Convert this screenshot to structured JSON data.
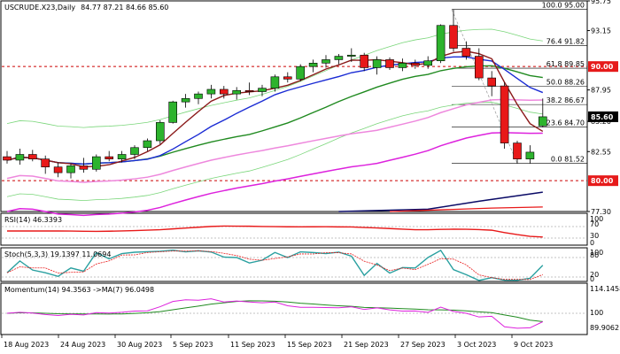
{
  "header": {
    "symbol_label": "USCRUDE.X23,Daily",
    "ohlc": "84.77 87.21 84.66 85.60"
  },
  "panels": {
    "rsi_label": "RSI(14) 46.3393",
    "stoch_label": "Stoch(5,3,3) 19.1397 11.0694",
    "momentum_label": "Momentum(14) 94.3563  ->MA(7) 96.0498"
  },
  "colors": {
    "bull": "#2db32d",
    "bear": "#e81919",
    "fast_ma": "#1a2bd4",
    "ma_red": "#8b1a1a",
    "ma_green": "#208a20",
    "ma_pink": "#ee88dd",
    "ma_magenta": "#dd22dd",
    "ma_navy": "#0a0a66",
    "bollinger": "#7ad67a",
    "ref_line": "#cc0000",
    "price_badge_bg": "#000000",
    "ref_badge_bg": "#e61a1a"
  },
  "fibonacci": {
    "levels": [
      {
        "label": "100.0 95.00",
        "price": 95.0
      },
      {
        "label": "76.4 91.82",
        "price": 91.82
      },
      {
        "label": "61.8 89.85",
        "price": 89.85
      },
      {
        "label": "50.0 88.26",
        "price": 88.26
      },
      {
        "label": "38.2 86.67",
        "price": 86.67
      },
      {
        "label": "23.6 84.70",
        "price": 84.7
      },
      {
        "label": "0.0 81.52",
        "price": 81.52
      }
    ]
  },
  "reference_lines": {
    "upper": {
      "price": 90.0,
      "label": "90.00"
    },
    "lower": {
      "price": 80.0,
      "label": "80.00"
    }
  },
  "current_price": {
    "value": 85.6,
    "label": "85.60"
  },
  "price_axis": {
    "ticks": [
      {
        "value": 95.75,
        "label": "95.75"
      },
      {
        "value": 93.15,
        "label": "93.15"
      },
      {
        "value": 87.95,
        "label": "87.95"
      },
      {
        "value": 85.2,
        "label": "85.20"
      },
      {
        "value": 82.55,
        "label": "82.55"
      },
      {
        "value": 77.3,
        "label": "77.30"
      }
    ]
  },
  "rsi_axis": [
    "100",
    "70",
    "30",
    "0"
  ],
  "stoch_axis": [
    "100",
    "80",
    "20",
    "0"
  ],
  "momentum_axis": [
    "114.1458",
    "100",
    "89.9062"
  ],
  "chart_data": {
    "type": "candlestick",
    "symbol": "USCRUDE.X23",
    "timeframe": "Daily",
    "ylim": [
      77.3,
      95.75
    ],
    "x_labels": [
      "18 Aug 2023",
      "24 Aug 2023",
      "30 Aug 2023",
      "5 Sep 2023",
      "11 Sep 2023",
      "15 Sep 2023",
      "21 Sep 2023",
      "27 Sep 2023",
      "3 Oct 2023",
      "9 Oct 2023"
    ],
    "candles": [
      {
        "o": 82.1,
        "h": 82.6,
        "l": 81.5,
        "c": 81.8
      },
      {
        "o": 81.8,
        "h": 82.8,
        "l": 81.4,
        "c": 82.3
      },
      {
        "o": 82.3,
        "h": 82.7,
        "l": 81.7,
        "c": 81.9
      },
      {
        "o": 81.9,
        "h": 82.2,
        "l": 80.6,
        "c": 81.2
      },
      {
        "o": 81.2,
        "h": 81.6,
        "l": 80.3,
        "c": 80.7
      },
      {
        "o": 80.7,
        "h": 81.5,
        "l": 80.2,
        "c": 81.3
      },
      {
        "o": 81.3,
        "h": 82.0,
        "l": 80.7,
        "c": 81.0
      },
      {
        "o": 81.0,
        "h": 82.3,
        "l": 80.8,
        "c": 82.1
      },
      {
        "o": 82.1,
        "h": 82.6,
        "l": 81.7,
        "c": 81.9
      },
      {
        "o": 81.9,
        "h": 82.6,
        "l": 81.6,
        "c": 82.3
      },
      {
        "o": 82.3,
        "h": 83.1,
        "l": 81.9,
        "c": 82.9
      },
      {
        "o": 82.9,
        "h": 83.7,
        "l": 82.6,
        "c": 83.5
      },
      {
        "o": 83.5,
        "h": 85.3,
        "l": 83.2,
        "c": 85.1
      },
      {
        "o": 85.1,
        "h": 87.0,
        "l": 85.0,
        "c": 86.9
      },
      {
        "o": 86.9,
        "h": 87.6,
        "l": 86.4,
        "c": 87.2
      },
      {
        "o": 87.2,
        "h": 87.8,
        "l": 86.7,
        "c": 87.6
      },
      {
        "o": 87.6,
        "h": 88.4,
        "l": 87.2,
        "c": 88.0
      },
      {
        "o": 88.0,
        "h": 88.3,
        "l": 87.2,
        "c": 87.6
      },
      {
        "o": 87.6,
        "h": 88.2,
        "l": 87.1,
        "c": 87.9
      },
      {
        "o": 87.9,
        "h": 88.6,
        "l": 87.5,
        "c": 87.8
      },
      {
        "o": 87.8,
        "h": 88.4,
        "l": 87.4,
        "c": 88.1
      },
      {
        "o": 88.1,
        "h": 89.3,
        "l": 87.8,
        "c": 89.1
      },
      {
        "o": 89.1,
        "h": 89.5,
        "l": 88.6,
        "c": 88.9
      },
      {
        "o": 88.9,
        "h": 90.2,
        "l": 88.7,
        "c": 90.0
      },
      {
        "o": 90.0,
        "h": 90.6,
        "l": 89.5,
        "c": 90.3
      },
      {
        "o": 90.3,
        "h": 91.0,
        "l": 89.9,
        "c": 90.6
      },
      {
        "o": 90.6,
        "h": 91.1,
        "l": 90.2,
        "c": 90.9
      },
      {
        "o": 90.9,
        "h": 91.6,
        "l": 90.4,
        "c": 91.0
      },
      {
        "o": 91.0,
        "h": 91.2,
        "l": 89.6,
        "c": 89.9
      },
      {
        "o": 89.9,
        "h": 90.9,
        "l": 89.3,
        "c": 90.6
      },
      {
        "o": 90.6,
        "h": 90.8,
        "l": 89.7,
        "c": 89.9
      },
      {
        "o": 89.9,
        "h": 90.7,
        "l": 89.6,
        "c": 90.3
      },
      {
        "o": 90.3,
        "h": 90.6,
        "l": 89.8,
        "c": 90.1
      },
      {
        "o": 90.1,
        "h": 90.9,
        "l": 89.8,
        "c": 90.5
      },
      {
        "o": 90.5,
        "h": 93.7,
        "l": 90.3,
        "c": 93.6
      },
      {
        "o": 93.6,
        "h": 95.0,
        "l": 91.3,
        "c": 91.6
      },
      {
        "o": 91.6,
        "h": 92.2,
        "l": 90.6,
        "c": 90.9
      },
      {
        "o": 90.9,
        "h": 91.6,
        "l": 88.8,
        "c": 89.0
      },
      {
        "o": 89.0,
        "h": 89.6,
        "l": 87.4,
        "c": 88.3
      },
      {
        "o": 88.3,
        "h": 88.6,
        "l": 82.8,
        "c": 83.3
      },
      {
        "o": 83.3,
        "h": 83.5,
        "l": 81.5,
        "c": 81.9
      },
      {
        "o": 81.9,
        "h": 83.1,
        "l": 81.5,
        "c": 82.5
      },
      {
        "o": 84.8,
        "h": 87.2,
        "l": 84.7,
        "c": 85.6
      }
    ]
  }
}
